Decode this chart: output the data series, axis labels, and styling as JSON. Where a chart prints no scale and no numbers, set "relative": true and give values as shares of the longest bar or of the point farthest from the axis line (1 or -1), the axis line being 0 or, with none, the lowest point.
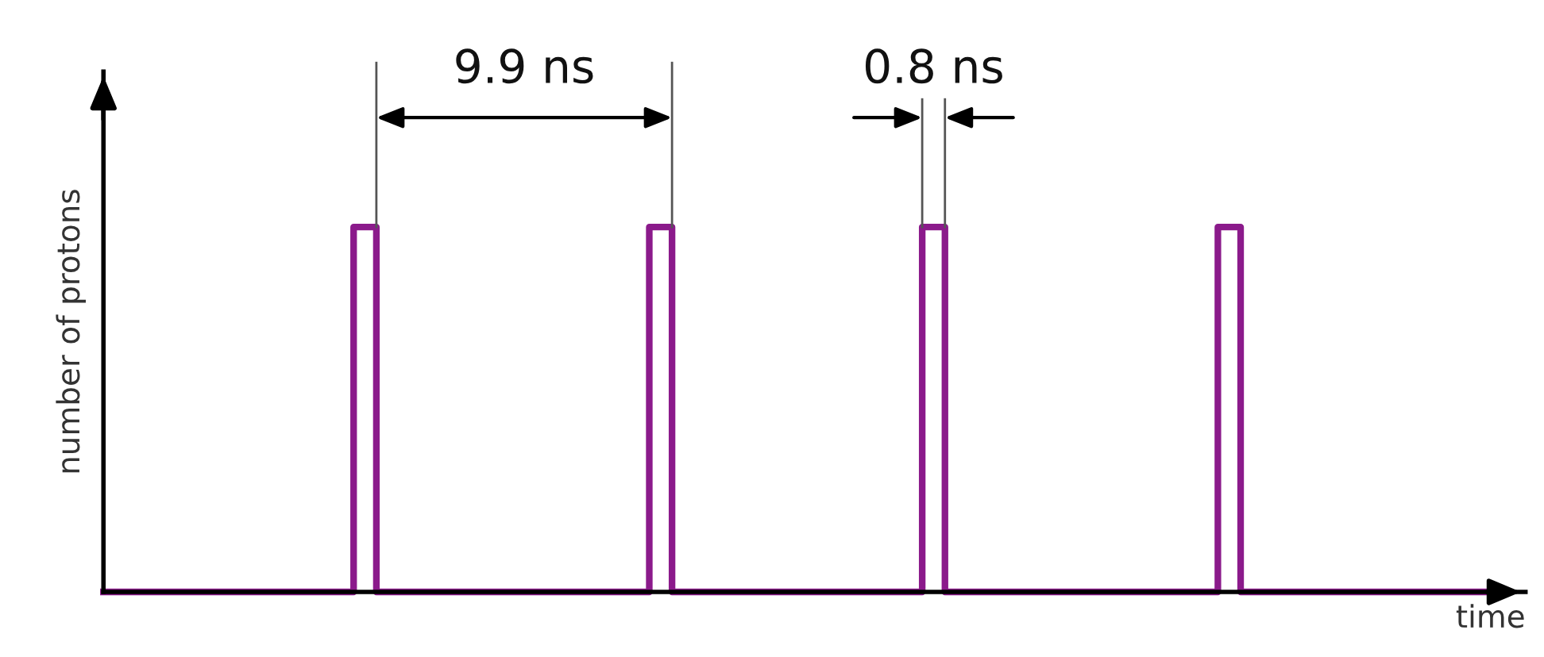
{
  "chart_data": {
    "type": "step",
    "relative": true,
    "xlabel": "time",
    "ylabel": "number of protons",
    "marker": "none",
    "line_style": "solid",
    "categories": [
      null,
      null,
      null,
      null,
      null,
      null,
      null,
      null,
      null,
      null,
      null,
      null,
      null,
      null,
      null,
      null,
      null,
      null,
      null,
      null,
      null,
      null,
      null,
      null,
      null,
      null,
      null,
      null,
      null,
      null,
      null,
      null,
      null,
      null,
      null,
      null,
      null,
      null,
      null,
      null,
      null,
      null,
      null,
      null,
      null,
      null,
      null,
      null,
      null,
      null,
      null,
      null,
      null,
      null,
      null,
      null,
      null,
      null,
      null,
      null,
      null,
      null
    ],
    "series": [
      {
        "color": "#8b1a8b",
        "values": [
          0,
          0,
          0,
          0,
          0,
          0,
          0,
          0,
          0,
          0,
          0,
          1,
          0,
          0,
          0,
          0,
          0,
          0,
          0,
          0,
          0,
          0,
          0,
          0,
          1,
          0,
          0,
          0,
          0,
          0,
          0,
          0,
          0,
          0,
          0,
          0,
          1,
          0,
          0,
          0,
          0,
          0,
          0,
          0,
          0,
          0,
          0,
          0,
          0,
          1,
          0,
          0,
          0,
          0,
          0,
          0,
          0,
          0,
          0,
          0,
          0,
          0
        ]
      }
    ],
    "annotations": [
      "9.9 ns",
      "0.8 ns"
    ]
  }
}
